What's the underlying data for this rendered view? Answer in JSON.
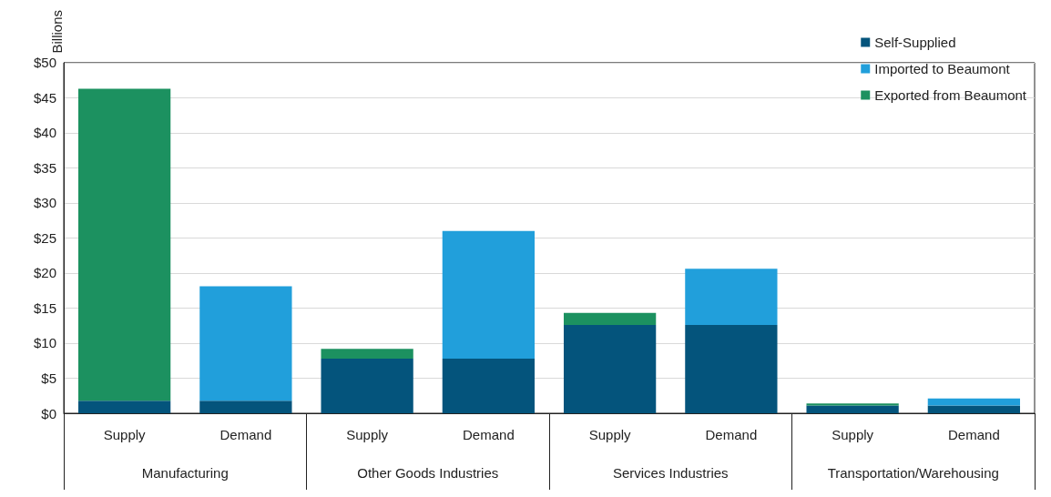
{
  "chart_data": {
    "type": "bar",
    "stacked": true,
    "ylabel": "Billions",
    "categories": [
      "Supply",
      "Demand",
      "Supply",
      "Demand",
      "Supply",
      "Demand",
      "Supply",
      "Demand"
    ],
    "annotations": [
      "Manufacturing",
      "Other Goods Industries",
      "Services Industries",
      "Transportation/Warehousing"
    ],
    "series": [
      {
        "name": "Self-Supplied",
        "color": "#04547c",
        "values": [
          1.8,
          1.8,
          7.8,
          7.8,
          12.6,
          12.6,
          1.1,
          1.1
        ]
      },
      {
        "name": "Imported to Beaumont",
        "color": "#219fdb",
        "values": [
          0,
          16.3,
          0,
          18.2,
          0,
          8.0,
          0,
          1.0
        ]
      },
      {
        "name": "Exported from Beaumont",
        "color": "#1c9160",
        "values": [
          44.5,
          0,
          1.4,
          0,
          1.7,
          0,
          0.3,
          0
        ]
      }
    ],
    "ylim": [
      0,
      50
    ],
    "yticks": [
      {
        "value": 0,
        "label": "$0"
      },
      {
        "value": 5,
        "label": "$5"
      },
      {
        "value": 10,
        "label": "$10"
      },
      {
        "value": 15,
        "label": "$15"
      },
      {
        "value": 20,
        "label": "$20"
      },
      {
        "value": 25,
        "label": "$25"
      },
      {
        "value": 30,
        "label": "$30"
      },
      {
        "value": 35,
        "label": "$35"
      },
      {
        "value": 40,
        "label": "$40"
      },
      {
        "value": 45,
        "label": "$45"
      },
      {
        "value": 50,
        "label": "$50"
      }
    ],
    "grid": "y",
    "legend": "top right"
  }
}
